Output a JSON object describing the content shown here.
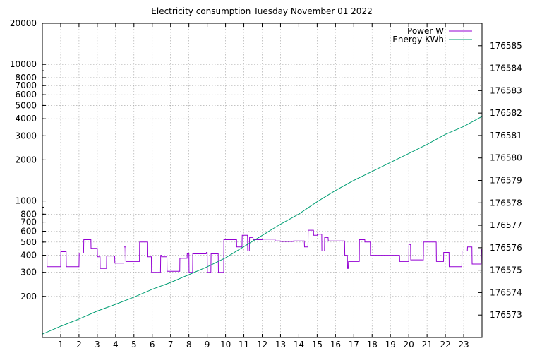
{
  "chart_data": {
    "type": "line",
    "title": "Electricity consumption Tuesday November 01 2022",
    "xlabel": "",
    "ylabel": "",
    "y2label": "",
    "xlim": [
      0,
      24
    ],
    "ylim": [
      100,
      20000
    ],
    "yscale": "log",
    "y2lim": [
      176572,
      176586
    ],
    "grid": true,
    "legend_position": "top-right",
    "x_ticks": [
      "1",
      "2",
      "3",
      "4",
      "5",
      "6",
      "7",
      "8",
      "9",
      "10",
      "11",
      "12",
      "13",
      "14",
      "15",
      "16",
      "17",
      "18",
      "19",
      "20",
      "21",
      "22",
      "23"
    ],
    "y_ticks": [
      {
        "v": 200,
        "label": "200"
      },
      {
        "v": 300,
        "label": "300"
      },
      {
        "v": 400,
        "label": "400"
      },
      {
        "v": 500,
        "label": "500"
      },
      {
        "v": 600,
        "label": "600"
      },
      {
        "v": 700,
        "label": "700"
      },
      {
        "v": 800,
        "label": "800"
      },
      {
        "v": 1000,
        "label": "1000"
      },
      {
        "v": 2000,
        "label": "2000"
      },
      {
        "v": 3000,
        "label": "3000"
      },
      {
        "v": 4000,
        "label": "4000"
      },
      {
        "v": 5000,
        "label": "5000"
      },
      {
        "v": 6000,
        "label": "6000"
      },
      {
        "v": 7000,
        "label": "7000"
      },
      {
        "v": 8000,
        "label": "8000"
      },
      {
        "v": 10000,
        "label": "10000"
      },
      {
        "v": 20000,
        "label": "20000"
      }
    ],
    "y2_ticks": [
      "176573",
      "176574",
      "176575",
      "176576",
      "176577",
      "176578",
      "176579",
      "176580",
      "176581",
      "176582",
      "176583",
      "176584",
      "176585"
    ],
    "colors": {
      "power": "#9400d3",
      "energy": "#009e73"
    },
    "series": [
      {
        "name": "Power W",
        "axis": "y",
        "x": [
          0,
          0.25,
          0.26,
          1.0,
          1.01,
          1.3,
          1.31,
          2.0,
          2.01,
          2.25,
          2.26,
          2.65,
          2.66,
          3.0,
          3.01,
          3.15,
          3.16,
          3.5,
          3.51,
          3.95,
          3.96,
          4.45,
          4.46,
          4.55,
          4.56,
          5.3,
          5.31,
          5.75,
          5.76,
          5.95,
          5.96,
          6.45,
          6.46,
          6.5,
          6.51,
          6.8,
          6.81,
          7.5,
          7.51,
          7.9,
          7.91,
          8.0,
          8.01,
          8.2,
          8.21,
          8.95,
          8.96,
          9.0,
          9.01,
          9.2,
          9.21,
          9.6,
          9.61,
          9.9,
          9.91,
          10.6,
          10.61,
          10.9,
          10.91,
          11.2,
          11.21,
          11.3,
          11.31,
          11.5,
          11.51,
          12.0,
          12.01,
          12.7,
          12.71,
          13.0,
          13.01,
          13.7,
          13.71,
          14.3,
          14.31,
          14.5,
          14.51,
          14.8,
          14.81,
          15.0,
          15.01,
          15.25,
          15.26,
          15.4,
          15.41,
          15.6,
          15.61,
          16.5,
          16.51,
          16.65,
          16.66,
          16.7,
          16.71,
          17.3,
          17.31,
          17.6,
          17.61,
          17.9,
          17.91,
          18.5,
          18.51,
          19.5,
          19.51,
          20.0,
          20.01,
          20.1,
          20.11,
          20.8,
          20.81,
          21.5,
          21.51,
          21.9,
          21.91,
          22.2,
          22.21,
          22.9,
          22.91,
          23.2,
          23.21,
          23.45,
          23.46,
          23.95,
          23.96,
          24.0
        ],
        "values": [
          430,
          430,
          330,
          330,
          425,
          425,
          330,
          330,
          415,
          415,
          520,
          520,
          450,
          450,
          390,
          390,
          320,
          320,
          395,
          395,
          350,
          350,
          460,
          460,
          360,
          360,
          500,
          500,
          390,
          390,
          300,
          300,
          400,
          400,
          390,
          390,
          305,
          305,
          380,
          380,
          410,
          410,
          300,
          300,
          410,
          410,
          420,
          420,
          300,
          300,
          410,
          410,
          300,
          300,
          520,
          520,
          460,
          460,
          560,
          560,
          430,
          430,
          540,
          540,
          520,
          520,
          525,
          525,
          510,
          510,
          505,
          505,
          510,
          510,
          460,
          460,
          610,
          610,
          560,
          560,
          570,
          570,
          430,
          430,
          540,
          540,
          510,
          510,
          400,
          400,
          320,
          320,
          360,
          360,
          520,
          520,
          500,
          500,
          400,
          400,
          400,
          400,
          360,
          360,
          480,
          480,
          370,
          370,
          500,
          500,
          360,
          360,
          420,
          420,
          330,
          330,
          430,
          430,
          460,
          460,
          345,
          345,
          440,
          440
        ]
      },
      {
        "name": "Energy KWh",
        "axis": "y2",
        "x": [
          0,
          1,
          2,
          3,
          4,
          5,
          6,
          7,
          8,
          9,
          10,
          11,
          12,
          13,
          14,
          15,
          16,
          17,
          18,
          19,
          20,
          21,
          22,
          23,
          24
        ],
        "values": [
          176572.15,
          176572.5,
          176572.82,
          176573.18,
          176573.48,
          176573.8,
          176574.15,
          176574.45,
          176574.8,
          176575.15,
          176575.55,
          176576.05,
          176576.55,
          176577.05,
          176577.5,
          176578.05,
          176578.55,
          176579.0,
          176579.4,
          176579.8,
          176580.2,
          176580.6,
          176581.05,
          176581.4,
          176581.85
        ]
      }
    ]
  }
}
